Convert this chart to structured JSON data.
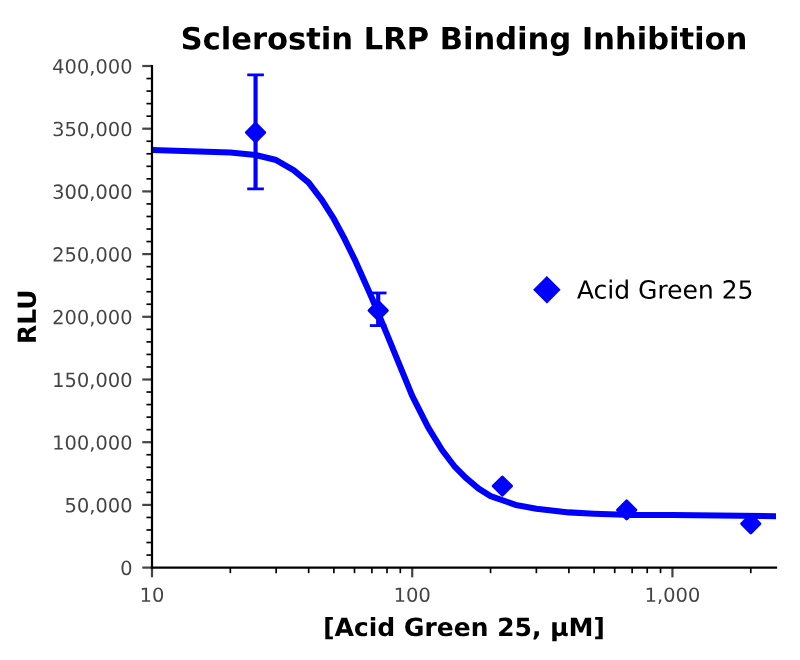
{
  "chart_data": {
    "type": "scatter",
    "title": "Sclerostin LRP Binding Inhibition",
    "xlabel": "[Acid Green 25, µM]",
    "ylabel": "RLU",
    "log": "x",
    "xlim": [
      10,
      2500
    ],
    "ylim": [
      0,
      400000
    ],
    "xticks": [
      10,
      100,
      {
        "value": 1000,
        "label": "1,000"
      }
    ],
    "yticks": [
      0,
      {
        "value": 50000,
        "label": "50,000"
      },
      {
        "value": 100000,
        "label": "100,000"
      },
      {
        "value": 150000,
        "label": "150,000"
      },
      {
        "value": 200000,
        "label": "200,000"
      },
      {
        "value": 250000,
        "label": "250,000"
      },
      {
        "value": 300000,
        "label": "300,000"
      },
      {
        "value": 350000,
        "label": "350,000"
      },
      {
        "value": 400000,
        "label": "400,000"
      }
    ],
    "grid": false,
    "legend": "right",
    "series": [
      {
        "name": "Acid Green 25",
        "marker": "diamond",
        "color": "#0000ff",
        "x": [
          25,
          74,
          222,
          667,
          2000
        ],
        "values": [
          347000,
          205000,
          65000,
          46000,
          35000
        ],
        "errors": [
          [
            302000,
            393000
          ],
          [
            193000,
            219000
          ],
          null,
          null,
          null
        ]
      },
      {
        "type": "line",
        "marker": "none",
        "color": "#0000ff",
        "x": [
          10,
          20,
          25,
          30,
          35,
          40,
          45,
          50,
          55,
          60,
          65,
          70,
          75,
          80,
          90,
          100,
          115,
          130,
          145,
          160,
          180,
          200,
          250,
          300,
          400,
          500,
          700,
          1000,
          2500
        ],
        "values": [
          333000,
          331000,
          329000,
          325000,
          317000,
          307000,
          293000,
          278000,
          262000,
          246000,
          230000,
          215000,
          200000,
          186000,
          160000,
          137000,
          112000,
          94000,
          81000,
          72000,
          63000,
          57000,
          50000,
          47000,
          44000,
          43000,
          42000,
          42000,
          41000
        ]
      }
    ]
  }
}
